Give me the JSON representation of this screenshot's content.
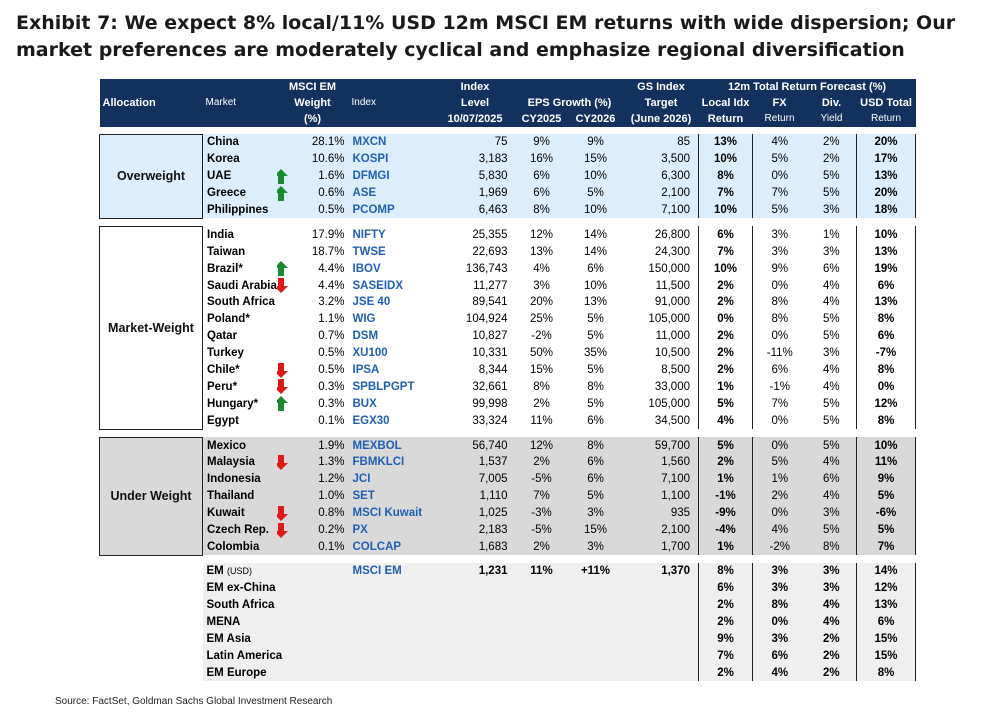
{
  "title": "Exhibit 7: We expect 8% local/11% USD 12m MSCI EM returns with wide dispersion; Our market preferences are moderately cyclical and emphasize regional diversification",
  "headers": {
    "allocation": "Allocation",
    "market": "Market",
    "msci_em": "MSCI EM",
    "weight": "Weight",
    "weight_unit": "(%)",
    "index": "Index",
    "index_level_1": "Index",
    "index_level_2": "Level",
    "index_level_date": "10/07/2025",
    "eps_growth": "EPS Growth (%)",
    "cy2025": "CY2025",
    "cy2026": "CY2026",
    "gs_index": "GS Index",
    "target": "Target",
    "target_date": "(June 2026)",
    "forecast_group": "12m Total Return Forecast (%)",
    "local_idx_1": "Local Idx",
    "local_idx_2": "Return",
    "fx_1": "FX",
    "fx_2": "Return",
    "div_1": "Div.",
    "div_2": "Yield",
    "usd_total_1": "USD Total",
    "usd_total_2": "Return"
  },
  "groups": [
    {
      "allocation": "Overweight",
      "bg": "#dceefb",
      "rows": [
        {
          "market": "China",
          "arrow": "",
          "weight": "28.1%",
          "index": "MXCN",
          "level": "75",
          "eps2025": "9%",
          "eps2026": "9%",
          "target": "85",
          "local": "13%",
          "fx": "4%",
          "div": "2%",
          "usd": "20%"
        },
        {
          "market": "Korea",
          "arrow": "",
          "weight": "10.6%",
          "index": "KOSPI",
          "level": "3,183",
          "eps2025": "16%",
          "eps2026": "15%",
          "target": "3,500",
          "local": "10%",
          "fx": "5%",
          "div": "2%",
          "usd": "17%"
        },
        {
          "market": "UAE",
          "arrow": "up",
          "weight": "1.6%",
          "index": "DFMGI",
          "level": "5,830",
          "eps2025": "6%",
          "eps2026": "10%",
          "target": "6,300",
          "local": "8%",
          "fx": "0%",
          "div": "5%",
          "usd": "13%"
        },
        {
          "market": "Greece",
          "arrow": "up",
          "weight": "0.6%",
          "index": "ASE",
          "level": "1,969",
          "eps2025": "6%",
          "eps2026": "5%",
          "target": "2,100",
          "local": "7%",
          "fx": "7%",
          "div": "5%",
          "usd": "20%"
        },
        {
          "market": "Philippines",
          "arrow": "",
          "weight": "0.5%",
          "index": "PCOMP",
          "level": "6,463",
          "eps2025": "8%",
          "eps2026": "10%",
          "target": "7,100",
          "local": "10%",
          "fx": "5%",
          "div": "3%",
          "usd": "18%"
        }
      ]
    },
    {
      "allocation": "Market-Weight",
      "bg": "#ffffff",
      "rows": [
        {
          "market": "India",
          "arrow": "",
          "weight": "17.9%",
          "index": "NIFTY",
          "level": "25,355",
          "eps2025": "12%",
          "eps2026": "14%",
          "target": "26,800",
          "local": "6%",
          "fx": "3%",
          "div": "1%",
          "usd": "10%"
        },
        {
          "market": "Taiwan",
          "arrow": "",
          "weight": "18.7%",
          "index": "TWSE",
          "level": "22,693",
          "eps2025": "13%",
          "eps2026": "14%",
          "target": "24,300",
          "local": "7%",
          "fx": "3%",
          "div": "3%",
          "usd": "13%"
        },
        {
          "market": "Brazil*",
          "arrow": "up",
          "weight": "4.4%",
          "index": "IBOV",
          "level": "136,743",
          "eps2025": "4%",
          "eps2026": "6%",
          "target": "150,000",
          "local": "10%",
          "fx": "9%",
          "div": "6%",
          "usd": "19%"
        },
        {
          "market": "Saudi Arabia",
          "arrow": "down",
          "weight": "4.4%",
          "index": "SASEIDX",
          "level": "11,277",
          "eps2025": "3%",
          "eps2026": "10%",
          "target": "11,500",
          "local": "2%",
          "fx": "0%",
          "div": "4%",
          "usd": "6%"
        },
        {
          "market": "South Africa",
          "arrow": "",
          "weight": "3.2%",
          "index": "JSE 40",
          "level": "89,541",
          "eps2025": "20%",
          "eps2026": "13%",
          "target": "91,000",
          "local": "2%",
          "fx": "8%",
          "div": "4%",
          "usd": "13%"
        },
        {
          "market": "Poland*",
          "arrow": "",
          "weight": "1.1%",
          "index": "WIG",
          "level": "104,924",
          "eps2025": "25%",
          "eps2026": "5%",
          "target": "105,000",
          "local": "0%",
          "fx": "8%",
          "div": "5%",
          "usd": "8%"
        },
        {
          "market": "Qatar",
          "arrow": "",
          "weight": "0.7%",
          "index": "DSM",
          "level": "10,827",
          "eps2025": "-2%",
          "eps2026": "5%",
          "target": "11,000",
          "local": "2%",
          "fx": "0%",
          "div": "5%",
          "usd": "6%"
        },
        {
          "market": "Turkey",
          "arrow": "",
          "weight": "0.5%",
          "index": "XU100",
          "level": "10,331",
          "eps2025": "50%",
          "eps2026": "35%",
          "target": "10,500",
          "local": "2%",
          "fx": "-11%",
          "div": "3%",
          "usd": "-7%"
        },
        {
          "market": "Chile*",
          "arrow": "down",
          "weight": "0.5%",
          "index": "IPSA",
          "level": "8,344",
          "eps2025": "15%",
          "eps2026": "5%",
          "target": "8,500",
          "local": "2%",
          "fx": "6%",
          "div": "4%",
          "usd": "8%"
        },
        {
          "market": "Peru*",
          "arrow": "down",
          "weight": "0.3%",
          "index": "SPBLPGPT",
          "level": "32,661",
          "eps2025": "8%",
          "eps2026": "8%",
          "target": "33,000",
          "local": "1%",
          "fx": "-1%",
          "div": "4%",
          "usd": "0%"
        },
        {
          "market": "Hungary*",
          "arrow": "up",
          "weight": "0.3%",
          "index": "BUX",
          "level": "99,998",
          "eps2025": "2%",
          "eps2026": "5%",
          "target": "105,000",
          "local": "5%",
          "fx": "7%",
          "div": "5%",
          "usd": "12%"
        },
        {
          "market": "Egypt",
          "arrow": "",
          "weight": "0.1%",
          "index": "EGX30",
          "level": "33,324",
          "eps2025": "11%",
          "eps2026": "6%",
          "target": "34,500",
          "local": "4%",
          "fx": "0%",
          "div": "5%",
          "usd": "8%"
        }
      ]
    },
    {
      "allocation": "Under Weight",
      "bg": "#d9d9d9",
      "rows": [
        {
          "market": "Mexico",
          "arrow": "",
          "weight": "1.9%",
          "index": "MEXBOL",
          "level": "56,740",
          "eps2025": "12%",
          "eps2026": "8%",
          "target": "59,700",
          "local": "5%",
          "fx": "0%",
          "div": "5%",
          "usd": "10%"
        },
        {
          "market": "Malaysia",
          "arrow": "down",
          "weight": "1.3%",
          "index": "FBMKLCI",
          "level": "1,537",
          "eps2025": "2%",
          "eps2026": "6%",
          "target": "1,560",
          "local": "2%",
          "fx": "5%",
          "div": "4%",
          "usd": "11%"
        },
        {
          "market": "Indonesia",
          "arrow": "",
          "weight": "1.2%",
          "index": "JCI",
          "level": "7,005",
          "eps2025": "-5%",
          "eps2026": "6%",
          "target": "7,100",
          "local": "1%",
          "fx": "1%",
          "div": "6%",
          "usd": "9%"
        },
        {
          "market": "Thailand",
          "arrow": "",
          "weight": "1.0%",
          "index": "SET",
          "level": "1,110",
          "eps2025": "7%",
          "eps2026": "5%",
          "target": "1,100",
          "local": "-1%",
          "fx": "2%",
          "div": "4%",
          "usd": "5%"
        },
        {
          "market": "Kuwait",
          "arrow": "down",
          "weight": "0.8%",
          "index": "MSCI Kuwait",
          "level": "1,025",
          "eps2025": "-3%",
          "eps2026": "3%",
          "target": "935",
          "local": "-9%",
          "fx": "0%",
          "div": "3%",
          "usd": "-6%"
        },
        {
          "market": "Czech Rep.",
          "arrow": "down",
          "weight": "0.2%",
          "index": "PX",
          "level": "2,183",
          "eps2025": "-5%",
          "eps2026": "15%",
          "target": "2,100",
          "local": "-4%",
          "fx": "4%",
          "div": "5%",
          "usd": "5%"
        },
        {
          "market": "Colombia",
          "arrow": "",
          "weight": "0.1%",
          "index": "COLCAP",
          "level": "1,683",
          "eps2025": "2%",
          "eps2026": "3%",
          "target": "1,700",
          "local": "1%",
          "fx": "-2%",
          "div": "8%",
          "usd": "7%"
        }
      ]
    }
  ],
  "summary": {
    "em": {
      "market": "EM",
      "market_unit": "(USD)",
      "index": "MSCI EM",
      "level": "1,231",
      "eps2025": "11%",
      "eps2026": "+11%",
      "target": "1,370",
      "local": "8%",
      "fx": "3%",
      "div": "3%",
      "usd": "14%"
    },
    "rows": [
      {
        "market": "EM ex-China",
        "local": "6%",
        "fx": "3%",
        "div": "3%",
        "usd": "12%"
      },
      {
        "market": "South Africa",
        "local": "2%",
        "fx": "8%",
        "div": "4%",
        "usd": "13%"
      },
      {
        "market": "MENA",
        "local": "2%",
        "fx": "0%",
        "div": "4%",
        "usd": "6%"
      },
      {
        "market": "EM Asia",
        "local": "9%",
        "fx": "3%",
        "div": "2%",
        "usd": "15%"
      },
      {
        "market": "Latin America",
        "local": "7%",
        "fx": "6%",
        "div": "2%",
        "usd": "15%"
      },
      {
        "market": "EM Europe",
        "local": "2%",
        "fx": "4%",
        "div": "2%",
        "usd": "8%"
      }
    ],
    "bg": "#efefef"
  },
  "arrow_colors": {
    "up": "#1a8a2e",
    "down": "#e01818"
  },
  "source": "Source: FactSet, Goldman Sachs Global Investment Research"
}
